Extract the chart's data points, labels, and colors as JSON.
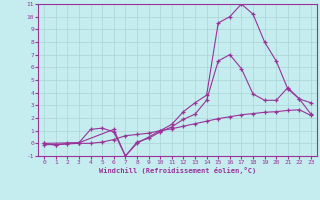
{
  "xlabel": "Windchill (Refroidissement éolien,°C)",
  "xlim": [
    -0.5,
    23.5
  ],
  "ylim": [
    -1,
    11
  ],
  "xticks": [
    0,
    1,
    2,
    3,
    4,
    5,
    6,
    7,
    8,
    9,
    10,
    11,
    12,
    13,
    14,
    15,
    16,
    17,
    18,
    19,
    20,
    21,
    22,
    23
  ],
  "yticks": [
    -1,
    0,
    1,
    2,
    3,
    4,
    5,
    6,
    7,
    8,
    9,
    10,
    11
  ],
  "background_color": "#c5ecee",
  "grid_color": "#aad4d6",
  "line_color": "#993399",
  "line1_x": [
    0,
    1,
    2,
    3,
    4,
    5,
    6,
    7,
    8,
    9,
    10,
    11,
    12,
    13,
    14,
    15,
    16,
    17,
    18,
    19,
    20,
    21,
    22,
    23
  ],
  "line1_y": [
    0,
    -0.15,
    0.0,
    0.05,
    1.1,
    1.2,
    0.9,
    -1.0,
    0.1,
    0.4,
    0.9,
    1.3,
    1.9,
    2.3,
    3.4,
    6.5,
    7.0,
    5.9,
    3.9,
    3.4,
    3.4,
    4.4,
    3.5,
    3.2
  ],
  "line2_x": [
    0,
    1,
    2,
    3,
    4,
    5,
    6,
    7,
    8,
    9,
    10,
    11,
    12,
    13,
    14,
    15,
    16,
    17,
    18,
    19,
    20,
    21,
    22,
    23
  ],
  "line2_y": [
    -0.1,
    -0.1,
    -0.05,
    0.0,
    0.0,
    0.1,
    0.3,
    0.6,
    0.7,
    0.8,
    1.0,
    1.15,
    1.35,
    1.55,
    1.75,
    1.95,
    2.1,
    2.25,
    2.35,
    2.45,
    2.5,
    2.6,
    2.65,
    2.2
  ],
  "line3_x": [
    0,
    3,
    6,
    7,
    8,
    10,
    11,
    12,
    13,
    14,
    15,
    16,
    17,
    18,
    19,
    20,
    21,
    22,
    23
  ],
  "line3_y": [
    0,
    0.05,
    1.1,
    -1.0,
    0.0,
    1.0,
    1.5,
    2.5,
    3.2,
    3.8,
    9.5,
    10.0,
    11.0,
    10.2,
    8.0,
    6.5,
    4.3,
    3.5,
    2.3
  ]
}
